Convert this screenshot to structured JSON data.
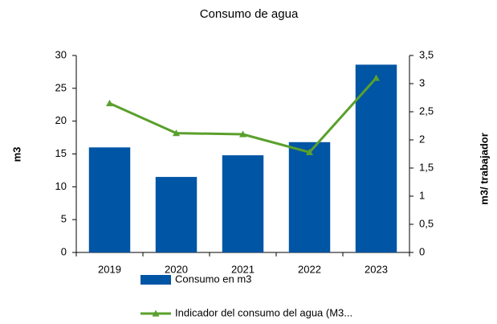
{
  "chart_data": {
    "type": "bar",
    "title": "Consumo de agua",
    "categories": [
      "2019",
      "2020",
      "2021",
      "2022",
      "2023"
    ],
    "series": [
      {
        "name": "Consumo en m3",
        "color": "#0055a5",
        "values": [
          16,
          11.5,
          14.8,
          16.8,
          28.6
        ]
      },
      {
        "name": "Indicador del consumo del agua (M3...",
        "color": "#5aa02c",
        "type": "line",
        "axis": "y2",
        "values": [
          2.65,
          2.12,
          2.1,
          1.78,
          3.1
        ]
      }
    ],
    "ylabel": "m3",
    "y2label": "m3/ trabajador",
    "ylim": [
      0,
      30
    ],
    "yticks": [
      0,
      5,
      10,
      15,
      20,
      25,
      30
    ],
    "y2lim": [
      0,
      3.5
    ],
    "y2ticks": [
      0,
      {
        "value": 0.5,
        "label": "0,5"
      },
      1,
      {
        "value": 1.5,
        "label": "1,5"
      },
      2,
      {
        "value": 2.5,
        "label": "2,5"
      },
      3,
      {
        "value": 3.5,
        "label": "3,5"
      }
    ],
    "grid": false,
    "legend": "bottom"
  }
}
